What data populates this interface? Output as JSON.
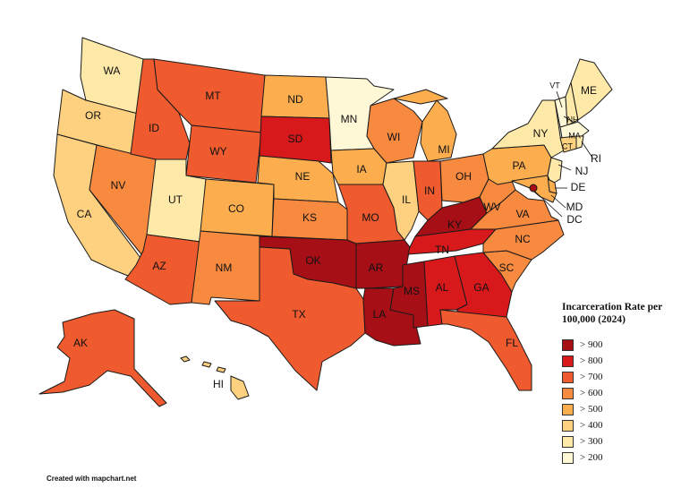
{
  "legend": {
    "title": "Incarceration Rate per 100,000 (2024)",
    "items": [
      {
        "label": "> 900",
        "color": "#a50f15"
      },
      {
        "label": "> 800",
        "color": "#d7191c"
      },
      {
        "label": "> 700",
        "color": "#ef5a2e"
      },
      {
        "label": "> 600",
        "color": "#f88a3f"
      },
      {
        "label": "> 500",
        "color": "#fcae4f"
      },
      {
        "label": "> 400",
        "color": "#fdd17f"
      },
      {
        "label": "> 300",
        "color": "#fee9a8"
      },
      {
        "label": "> 200",
        "color": "#fff8d6"
      }
    ]
  },
  "credit": "Created with mapchart.net",
  "states": {
    "WA": 1,
    "OR": 2,
    "CA": 2,
    "NV": 4,
    "ID": 5,
    "MT": 5,
    "WY": 5,
    "UT": 1,
    "AZ": 5,
    "CO": 3,
    "NM": 4,
    "ND": 3,
    "SD": 6,
    "NE": 3,
    "KS": 4,
    "OK": 7,
    "TX": 5,
    "MN": 0,
    "IA": 3,
    "MO": 5,
    "AR": 7,
    "LA": 7,
    "WI": 4,
    "IL": 2,
    "MI": 3,
    "IN": 5,
    "OH": 4,
    "KY": 7,
    "TN": 6,
    "MS": 7,
    "AL": 6,
    "GA": 6,
    "FL": 5,
    "SC": 4,
    "NC": 4,
    "VA": 4,
    "WV": 4,
    "PA": 3,
    "NY": 1,
    "VT": 0,
    "NH": 1,
    "ME": 1,
    "MA": 0,
    "RI": 1,
    "CT": 2,
    "NJ": 1,
    "DE": 3,
    "MD": 3,
    "DC": 7,
    "AK": 5,
    "HI": 2
  }
}
